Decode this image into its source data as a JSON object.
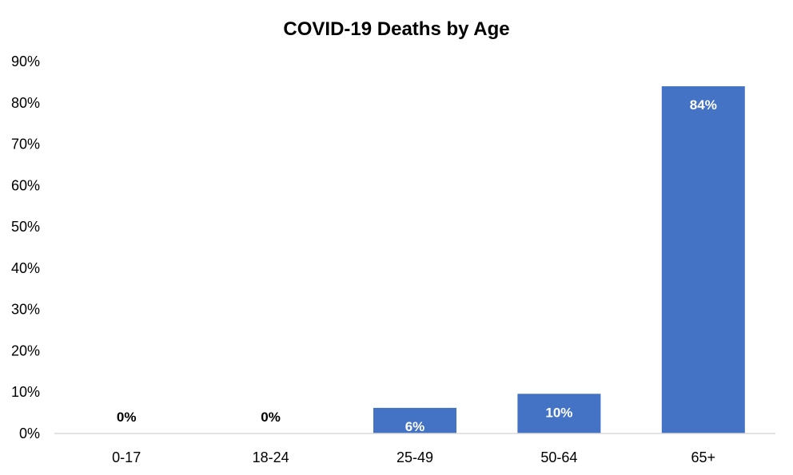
{
  "chart_data": {
    "type": "bar",
    "title": "COVID-19 Deaths by Age",
    "xlabel": "",
    "ylabel": "",
    "categories": [
      "0-17",
      "18-24",
      "25-49",
      "50-64",
      "65+"
    ],
    "values": [
      0,
      0,
      6,
      10,
      84
    ],
    "data_labels": [
      "0%",
      "0%",
      "6%",
      "10%",
      "84%"
    ],
    "bar_heights_percent": [
      0,
      0,
      6.2,
      9.6,
      84
    ],
    "ylim": [
      0,
      90
    ],
    "yticks": [
      0,
      10,
      20,
      30,
      40,
      50,
      60,
      70,
      80,
      90
    ],
    "ytick_labels": [
      "0%",
      "10%",
      "20%",
      "30%",
      "40%",
      "50%",
      "60%",
      "70%",
      "80%",
      "90%"
    ],
    "grid": false,
    "legend": "none",
    "colors": {
      "bar": "#4472C4",
      "axis": "#D9D9D9",
      "label_inside": "#FFFFFF",
      "label_outside": "#000000"
    }
  }
}
